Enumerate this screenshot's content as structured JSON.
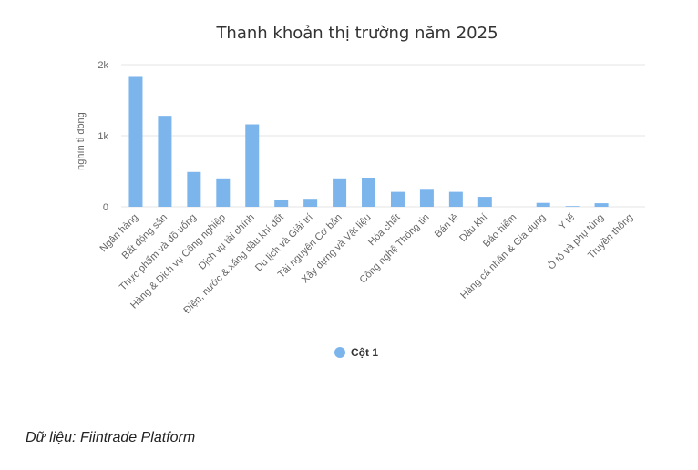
{
  "source_note": "Dữ liệu: Fiintrade Platform",
  "chart_data": {
    "type": "bar",
    "title": "Thanh khoản thị trường năm 2025",
    "ylabel": "nghìn tỉ đồng",
    "xlabel": "",
    "ylim": [
      0,
      2000
    ],
    "yticks": [
      0,
      1000,
      2000
    ],
    "ytick_labels": [
      "0",
      "1k",
      "2k"
    ],
    "grid": true,
    "legend_position": "bottom-center",
    "bar_color": "#7cb5ec",
    "categories": [
      "Ngân hàng",
      "Bất động sản",
      "Thực phẩm và đồ uống",
      "Hàng & Dịch vụ Công nghiệp",
      "Dịch vụ tài chính",
      "Điện, nước & xăng dầu khí đốt",
      "Du lịch và Giải trí",
      "Tài nguyên Cơ bản",
      "Xây dựng và Vật liệu",
      "Hóa chất",
      "Công nghệ Thông tin",
      "Bán lẻ",
      "Dầu khí",
      "Bảo hiểm",
      "Hàng cá nhân & Gia dụng",
      "Y tế",
      "Ô tô và phụ tùng",
      "Truyền thông"
    ],
    "series": [
      {
        "name": "Cột 1",
        "values": [
          1840,
          1280,
          490,
          400,
          1160,
          90,
          100,
          400,
          410,
          210,
          240,
          210,
          140,
          0,
          55,
          10,
          50,
          0
        ]
      }
    ]
  }
}
